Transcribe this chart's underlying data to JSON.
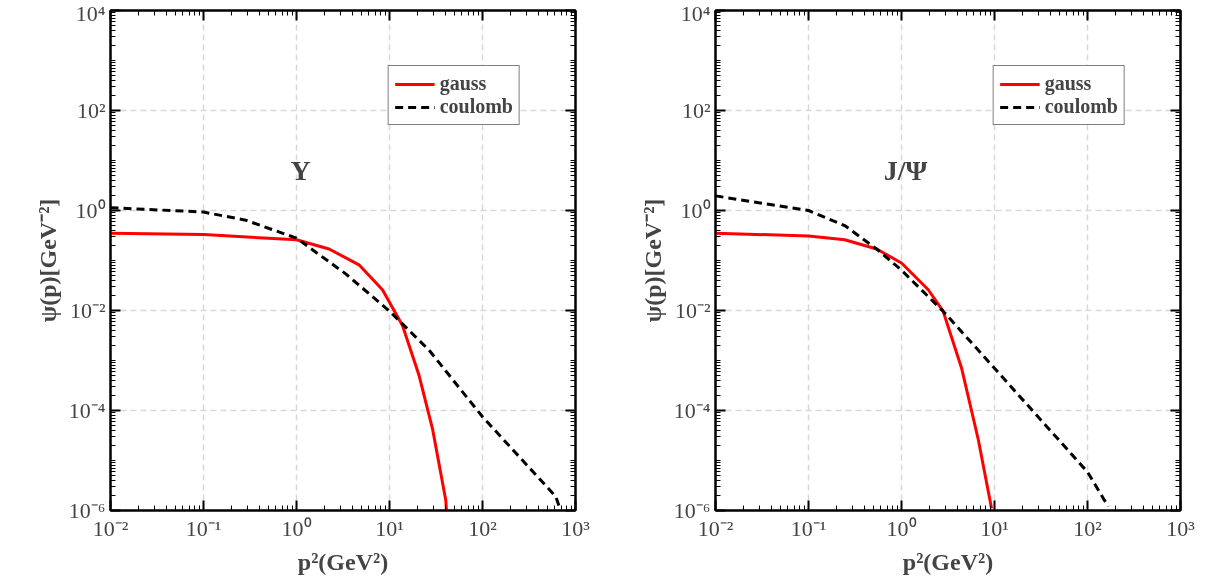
{
  "chart_data": [
    {
      "type": "line",
      "xlabel": "p²(GeV²)",
      "ylabel": "ψ(p)[GeV⁻²]",
      "log": "xy",
      "grid": true,
      "legend": "top right",
      "annotations": [
        "Υ"
      ],
      "xlim": [
        0.01,
        1000
      ],
      "ylim": [
        1e-06,
        10000
      ],
      "xticks": [
        {
          "value": 0.01,
          "label": "10⁻²"
        },
        {
          "value": 0.1,
          "label": "10⁻¹"
        },
        {
          "value": 1,
          "label": "10⁰"
        },
        {
          "value": 10,
          "label": "10¹"
        },
        {
          "value": 100,
          "label": "10²"
        },
        {
          "value": 1000,
          "label": "10³"
        }
      ],
      "yticks": [
        {
          "value": 1e-06,
          "label": "10⁻⁶"
        },
        {
          "value": 0.0001,
          "label": "10⁻⁴"
        },
        {
          "value": 0.01,
          "label": "10⁻²"
        },
        {
          "value": 1,
          "label": "10⁰"
        },
        {
          "value": 100,
          "label": "10²"
        },
        {
          "value": 10000,
          "label": "10⁴"
        }
      ],
      "series": [
        {
          "name": "gauss",
          "color": "#ff0000",
          "line_style": "solid",
          "x": [
            0.01,
            0.1,
            1,
            2.24,
            4.7,
            8.4,
            13.8,
            20.8,
            29,
            40.3,
            41
          ],
          "values": [
            0.35,
            0.33,
            0.26,
            0.17,
            0.082,
            0.026,
            0.005,
            0.0005,
            4.3e-05,
            1.6e-06,
            1e-06
          ]
        },
        {
          "name": "coulomb",
          "color": "#000000",
          "line_style": "dashed",
          "x": [
            0.01,
            0.1,
            0.285,
            1,
            3.39,
            10,
            26.7,
            100,
            614,
            680
          ],
          "values": [
            1.14,
            0.93,
            0.64,
            0.28,
            0.054,
            0.0097,
            0.0016,
            7.5e-05,
            1.9e-06,
            1.1e-06
          ]
        }
      ]
    },
    {
      "type": "line",
      "xlabel": "p²(GeV²)",
      "ylabel": "ψ(p)[GeV⁻²]",
      "log": "xy",
      "grid": true,
      "legend": "top right",
      "annotations": [
        "J/Ψ"
      ],
      "xlim": [
        0.01,
        1000
      ],
      "ylim": [
        1e-06,
        10000
      ],
      "xticks": [
        {
          "value": 0.01,
          "label": "10⁻²"
        },
        {
          "value": 0.1,
          "label": "10⁻¹"
        },
        {
          "value": 1,
          "label": "10⁰"
        },
        {
          "value": 10,
          "label": "10¹"
        },
        {
          "value": 100,
          "label": "10²"
        },
        {
          "value": 1000,
          "label": "10³"
        }
      ],
      "yticks": [
        {
          "value": 1e-06,
          "label": "10⁻⁶"
        },
        {
          "value": 0.0001,
          "label": "10⁻⁴"
        },
        {
          "value": 0.01,
          "label": "10⁻²"
        },
        {
          "value": 1,
          "label": "10⁰"
        },
        {
          "value": 100,
          "label": "10²"
        },
        {
          "value": 10000,
          "label": "10⁴"
        }
      ],
      "series": [
        {
          "name": "gauss",
          "color": "#ff0000",
          "line_style": "solid",
          "x": [
            0.01,
            0.1,
            0.245,
            0.54,
            1,
            1.94,
            2.8,
            4.43,
            6.7,
            9.3
          ],
          "values": [
            0.35,
            0.31,
            0.26,
            0.17,
            0.089,
            0.026,
            0.0097,
            0.0007,
            2.6e-05,
            1.1e-06
          ]
        },
        {
          "name": "coulomb",
          "color": "#000000",
          "line_style": "dashed",
          "x": [
            0.01,
            0.1,
            0.245,
            0.54,
            1,
            2.8,
            10,
            100,
            167
          ],
          "values": [
            1.96,
            1.0,
            0.5,
            0.17,
            0.064,
            0.0097,
            0.0007,
            5.9e-06,
            1.2e-06
          ]
        }
      ]
    }
  ]
}
